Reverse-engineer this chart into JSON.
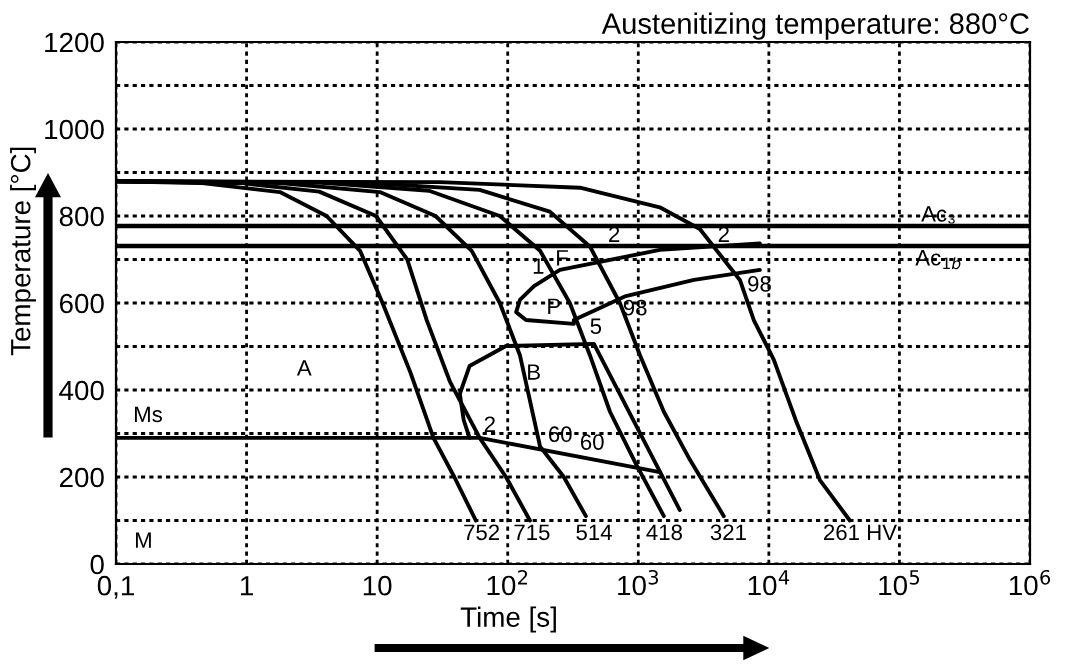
{
  "chart_data": {
    "type": "line",
    "title": "Austenitizing temperature: 880°C",
    "xlabel": "Time [s]",
    "ylabel": "Temperature [°C]",
    "log": "x",
    "grid": true,
    "legend": false,
    "marker": "none",
    "line_style": "solid",
    "xlim": [
      0.1,
      1000000
    ],
    "ylim": [
      0,
      1200
    ],
    "xticks": [
      {
        "value": 0.1,
        "label": "0,1"
      },
      1,
      10,
      {
        "value": 100,
        "label": "10$^{2}$"
      },
      {
        "value": 1000,
        "label": "10$^{3}$"
      },
      {
        "value": 10000,
        "label": "10$^{4}$"
      },
      {
        "value": 100000,
        "label": "10$^{5}$"
      },
      {
        "value": 1000000,
        "label": "10$^{6}$"
      }
    ],
    "yticks": [
      0,
      {
        "value": 100,
        "label": null
      },
      200,
      {
        "value": 300,
        "label": null
      },
      400,
      {
        "value": 500,
        "label": null
      },
      600,
      {
        "value": 700,
        "label": null
      },
      800,
      {
        "value": 900,
        "label": null
      },
      1000,
      {
        "value": 1100,
        "label": null
      },
      1200
    ],
    "series": [
      {
        "color": "#000000",
        "x": [
          0.1,
          0.44,
          1.8,
          4.1,
          7.4,
          11,
          18,
          27,
          39,
          57
        ],
        "values": [
          880,
          876,
          855,
          800,
          720,
          600,
          440,
          290,
          200,
          100
        ]
      },
      {
        "color": "#000000",
        "x": [
          0.1,
          0.89,
          3.6,
          9.8,
          17,
          24,
          36,
          61,
          97,
          148
        ],
        "values": [
          880,
          876,
          856,
          800,
          700,
          560,
          420,
          290,
          200,
          100
        ]
      },
      {
        "color": "#000000",
        "x": [
          0.1,
          1.8,
          10.5,
          28,
          53,
          87,
          124,
          177,
          269,
          397
        ],
        "values": [
          880,
          876,
          855,
          800,
          720,
          600,
          480,
          270,
          200,
          110
        ]
      },
      {
        "color": "#000000",
        "x": [
          0.1,
          3.6,
          25,
          87,
          177,
          299,
          426,
          607,
          959,
          1570
        ],
        "values": [
          880,
          877,
          858,
          800,
          720,
          600,
          480,
          350,
          230,
          110
        ]
      },
      {
        "color": "#000000",
        "x": [
          0.1,
          7.4,
          61,
          210,
          426,
          723,
          1030,
          1570,
          2480,
          4520
        ],
        "values": [
          880,
          877,
          860,
          810,
          730,
          600,
          480,
          350,
          240,
          110
        ]
      },
      {
        "color": "#000000",
        "x": [
          0.1,
          30,
          357,
          1460,
          2960,
          6000,
          7680,
          10900,
          16100,
          24600,
          41700
        ],
        "values": [
          880,
          878,
          865,
          820,
          770,
          653,
          560,
          470,
          330,
          193,
          100
        ]
      },
      {
        "color": "#000000",
        "x": [
          8530,
          1460,
          251,
          159,
          124,
          116,
          138,
          321,
          321,
          804,
          2670,
          8530
        ],
        "values": [
          737,
          722,
          676,
          639,
          607,
          579,
          561,
          552,
          561,
          616,
          653,
          676
        ]
      },
      {
        "color": "#000000",
        "x": [
          51,
          46,
          43,
          51,
          97,
          457,
          2080
        ],
        "values": [
          290,
          331,
          391,
          455,
          501,
          506,
          124
        ]
      },
      {
        "color": "#000000",
        "x": [
          0.1,
          61,
          1460
        ],
        "values": [
          290,
          290,
          211
        ]
      }
    ],
    "ref_lines": [
      {
        "axis": "y",
        "value": 777,
        "color": "#000000"
      },
      {
        "axis": "y",
        "value": 731,
        "color": "#000000"
      }
    ],
    "annotations": [
      "B",
      "F",
      "P",
      "1",
      "2",
      "2",
      "98",
      "98",
      "A",
      "M",
      "Ms",
      "Ac₃",
      "Ac$_{1b}$",
      "5",
      "2",
      "60",
      "60",
      "752",
      "715",
      "514",
      "418",
      "321",
      "261 HV"
    ]
  }
}
